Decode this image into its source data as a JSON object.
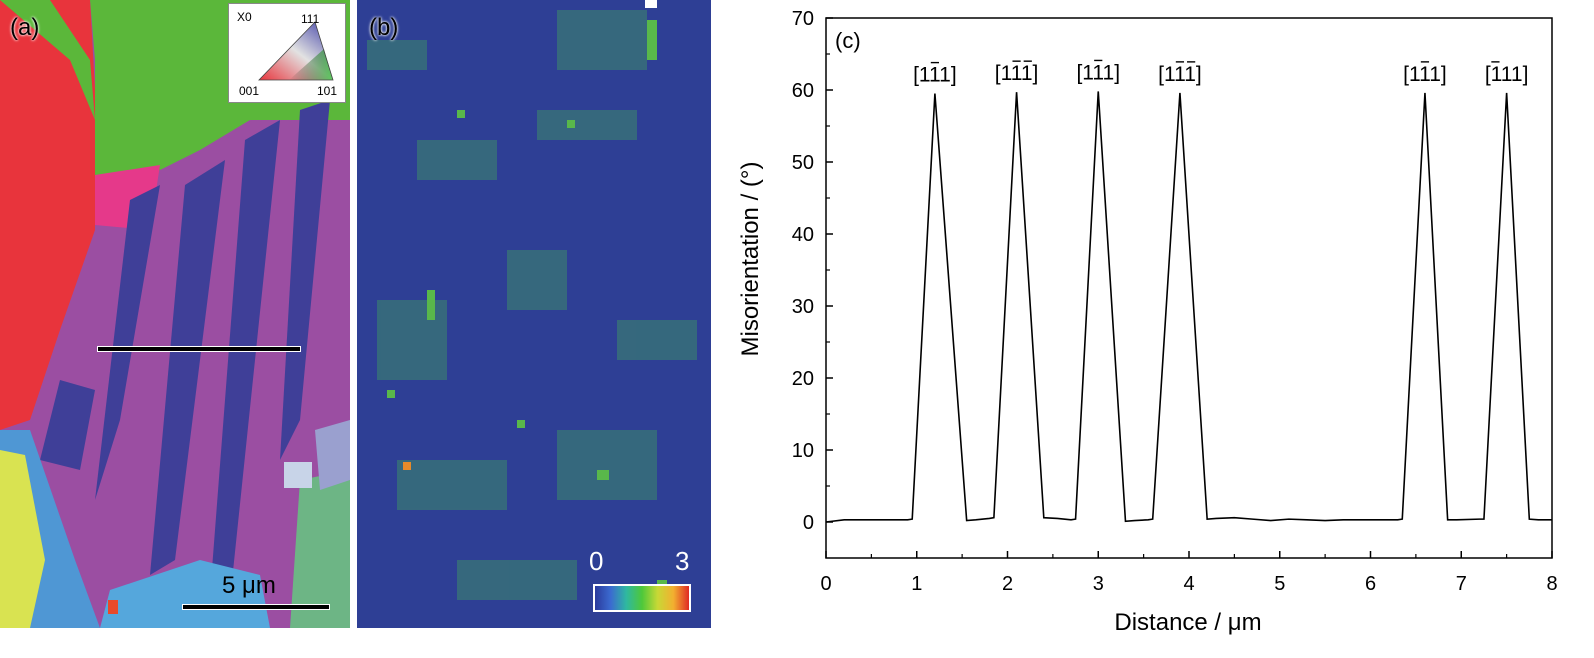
{
  "panel_a": {
    "label": "(a)",
    "legend": {
      "x0": "X0",
      "top": "111",
      "left": "001",
      "right": "101"
    },
    "scalebar": "5 μm"
  },
  "panel_b": {
    "label": "(b)",
    "colorbar_min": "0",
    "colorbar_max": "3"
  },
  "chart_data": {
    "type": "line",
    "panel_label": "(c)",
    "xlabel": "Distance / μm",
    "ylabel": "Misorientation / (°)",
    "xlim": [
      0,
      8
    ],
    "ylim": [
      -5,
      70
    ],
    "xticks": [
      0,
      1,
      2,
      3,
      4,
      5,
      6,
      7,
      8
    ],
    "yticks": [
      0,
      10,
      20,
      30,
      40,
      50,
      60,
      70
    ],
    "grid": false,
    "series": [
      {
        "x": [
          0,
          0.2,
          0.35,
          0.6,
          0.9,
          0.95,
          1.2,
          1.55,
          1.65,
          1.8,
          1.85,
          2.1,
          2.4,
          2.55,
          2.7,
          2.75,
          3.0,
          3.3,
          3.4,
          3.55,
          3.6,
          3.9,
          4.2,
          4.3,
          4.5,
          4.7,
          4.9,
          5.1,
          5.3,
          5.5,
          5.7,
          5.9,
          6.1,
          6.3,
          6.35,
          6.6,
          6.85,
          6.95,
          7.2,
          7.25,
          7.5,
          7.75,
          7.85,
          8.0
        ],
        "y": [
          0,
          0.3,
          0.3,
          0.3,
          0.3,
          0.4,
          59.5,
          0.2,
          0.3,
          0.5,
          0.6,
          59.7,
          0.6,
          0.5,
          0.3,
          0.4,
          59.8,
          0.1,
          0.2,
          0.3,
          0.4,
          59.6,
          0.4,
          0.5,
          0.6,
          0.4,
          0.2,
          0.4,
          0.3,
          0.2,
          0.3,
          0.3,
          0.3,
          0.3,
          0.4,
          59.6,
          0.3,
          0.3,
          0.4,
          0.4,
          59.6,
          0.4,
          0.3,
          0.3
        ]
      }
    ],
    "annotations": [
      {
        "x": 1.2,
        "y": 59.5,
        "pre": "[1",
        "bar": "1",
        "post": "1]",
        "barred": [
          false,
          true,
          false
        ]
      },
      {
        "x": 2.1,
        "y": 59.7,
        "pre": "[1",
        "bar": "1",
        "post": "1]",
        "barred": [
          false,
          true,
          true
        ]
      },
      {
        "x": 3.0,
        "y": 59.8,
        "pre": "[1",
        "bar": "1",
        "post": "1]",
        "barred": [
          false,
          true,
          false
        ]
      },
      {
        "x": 3.9,
        "y": 59.6,
        "pre": "[1",
        "bar": "1",
        "post": "1]",
        "barred": [
          false,
          true,
          true
        ]
      },
      {
        "x": 6.6,
        "y": 59.6,
        "pre": "[1",
        "bar": "1",
        "post": "1]",
        "barred": [
          false,
          true,
          false
        ]
      },
      {
        "x": 7.5,
        "y": 59.6,
        "pre": "[1",
        "bar": "1",
        "post": "1]",
        "barred": [
          true,
          false,
          false
        ]
      }
    ]
  }
}
